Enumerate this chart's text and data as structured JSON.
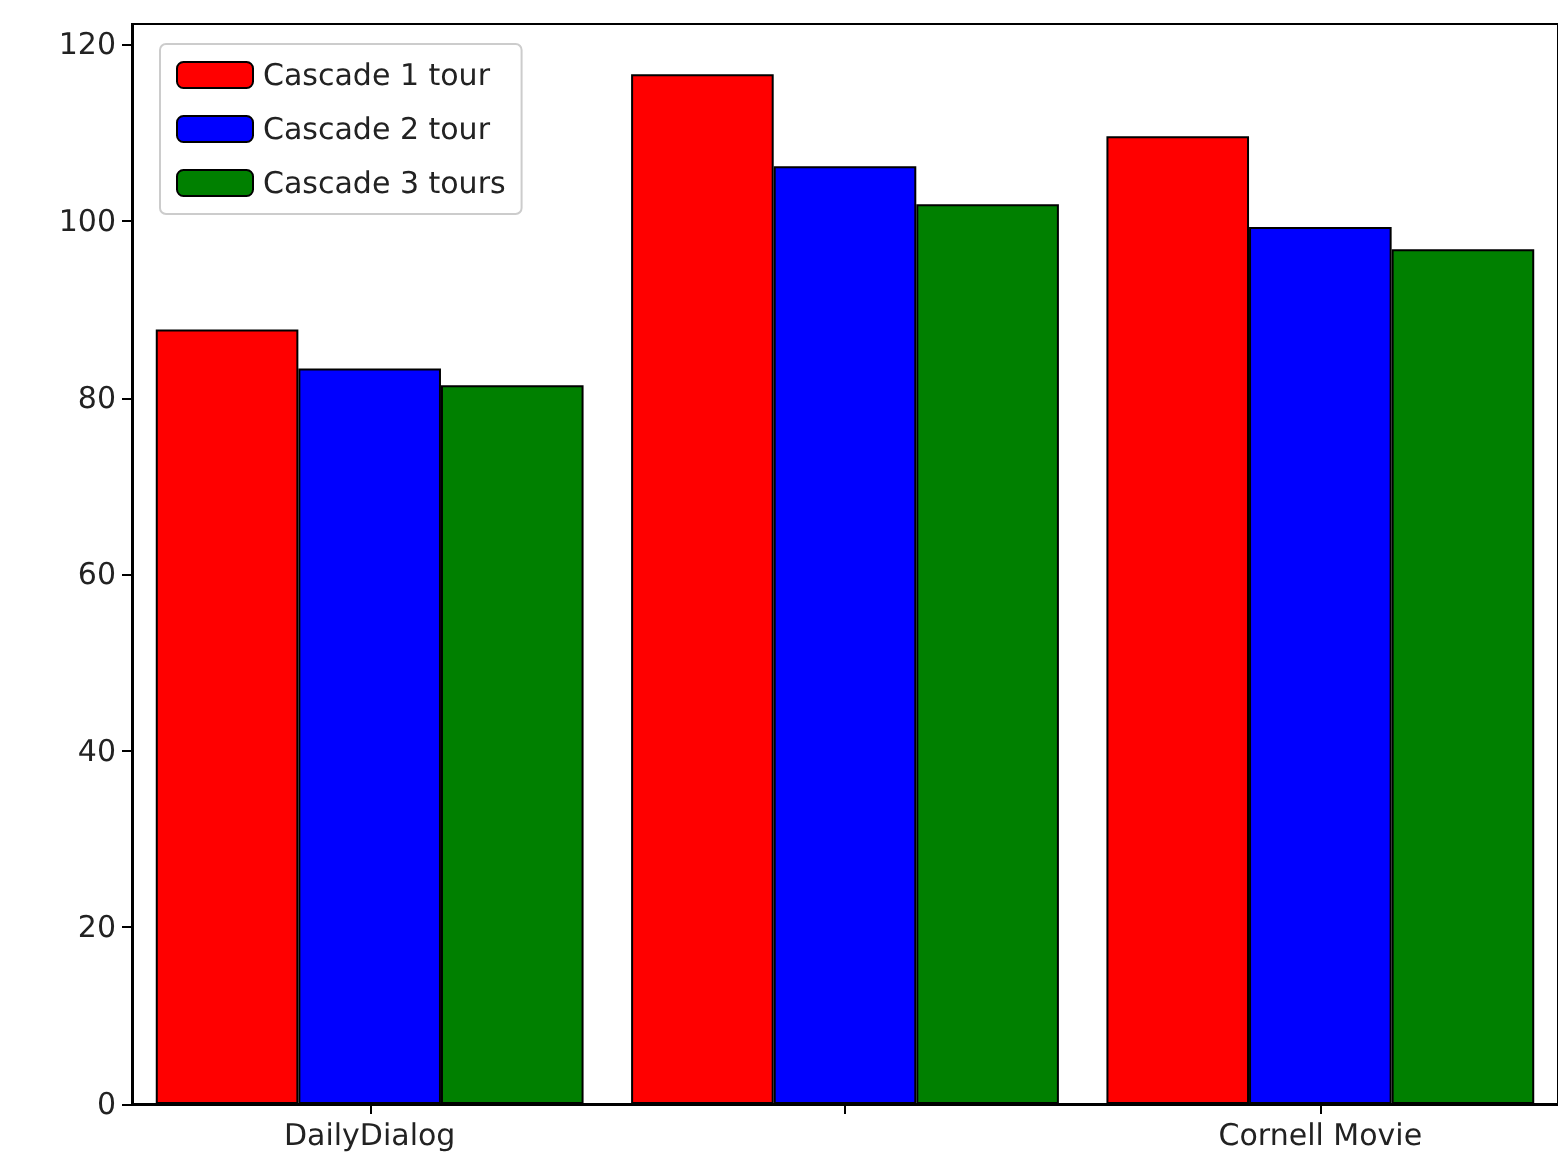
{
  "chart_data": {
    "type": "bar",
    "categories": [
      "DailyDialog",
      null,
      "Cornell Movie"
    ],
    "series": [
      {
        "name": "Cascade 1 tour",
        "color": "#ff0000",
        "values": [
          87.7,
          116.6,
          109.6
        ]
      },
      {
        "name": "Cascade 2 tour",
        "color": "#0000ff",
        "values": [
          83.3,
          106.2,
          99.3
        ]
      },
      {
        "name": "Cascade 3 tours",
        "color": "#008000",
        "values": [
          81.4,
          101.9,
          96.8
        ]
      }
    ],
    "ylim": [
      0,
      122.3
    ],
    "yticks": [
      0,
      20,
      40,
      60,
      80,
      100,
      120
    ],
    "legend": "top left",
    "grid": false
  }
}
